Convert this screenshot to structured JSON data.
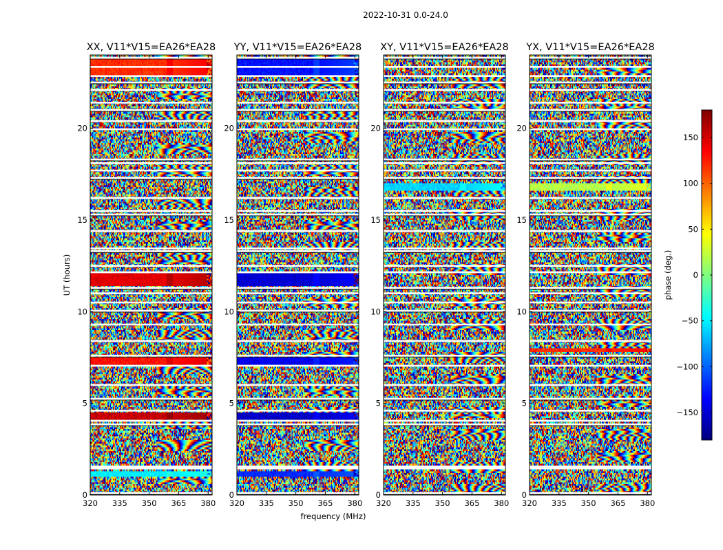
{
  "chart_data": {
    "type": "heatmap",
    "suptitle": "2022-10-31 0.0-24.0",
    "xlabel": "frequency (MHz)",
    "ylabel": "UT (hours)",
    "xlim": [
      320,
      382
    ],
    "ylim": [
      0,
      24
    ],
    "xticks": [
      320,
      335,
      350,
      365,
      380
    ],
    "yticks": [
      0,
      5,
      10,
      15,
      20
    ],
    "colorbar": {
      "label": "phase (deg.)",
      "range": [
        -180,
        180
      ],
      "ticks": [
        -150,
        -100,
        -50,
        0,
        50,
        100,
        150
      ],
      "colormap": "jet",
      "colors": [
        "#00007f",
        "#0000ff",
        "#007fff",
        "#00ffff",
        "#7fff7f",
        "#ffff00",
        "#ff7f00",
        "#ff0000",
        "#7f0000"
      ]
    },
    "panels": [
      {
        "title": "XX, V11*V15=EA26*EA28",
        "smooth_bands": [
          {
            "t0": 11.45,
            "t1": 12.05,
            "phase": 145
          },
          {
            "t0": 7.15,
            "t1": 7.5,
            "phase": 130
          },
          {
            "t0": 4.15,
            "t1": 4.5,
            "phase": 155
          },
          {
            "t0": 22.9,
            "t1": 23.8,
            "phase": 120
          },
          {
            "t0": 1.0,
            "t1": 1.3,
            "phase": -50
          }
        ]
      },
      {
        "title": "YY, V11*V15=EA26*EA28",
        "smooth_bands": [
          {
            "t0": 11.45,
            "t1": 12.05,
            "phase": -150
          },
          {
            "t0": 7.15,
            "t1": 7.5,
            "phase": -140
          },
          {
            "t0": 4.15,
            "t1": 4.5,
            "phase": -155
          },
          {
            "t0": 22.9,
            "t1": 23.8,
            "phase": -130
          },
          {
            "t0": 1.0,
            "t1": 1.3,
            "phase": -120
          }
        ]
      },
      {
        "title": "XY, V11*V15=EA26*EA28",
        "smooth_bands": [
          {
            "t0": 16.6,
            "t1": 16.95,
            "phase": -60
          }
        ]
      },
      {
        "title": "YX, V11*V15=EA26*EA28",
        "smooth_bands": [
          {
            "t0": 16.6,
            "t1": 16.95,
            "phase": 20
          },
          {
            "t0": 7.8,
            "t1": 8.0,
            "phase": 120
          }
        ]
      }
    ],
    "gaps_hours": [
      0.1,
      1.45,
      1.55,
      3.85,
      4.05,
      4.6,
      5.25,
      6.0,
      7.05,
      7.6,
      8.4,
      9.3,
      10.05,
      10.5,
      11.0,
      11.3,
      12.15,
      12.5,
      13.3,
      13.45,
      14.4,
      15.3,
      15.5,
      16.2,
      17.3,
      17.7,
      18.1,
      18.3,
      19.95,
      20.4,
      21.0,
      21.4,
      22.1,
      22.5,
      22.85,
      23.35,
      23.85
    ]
  }
}
